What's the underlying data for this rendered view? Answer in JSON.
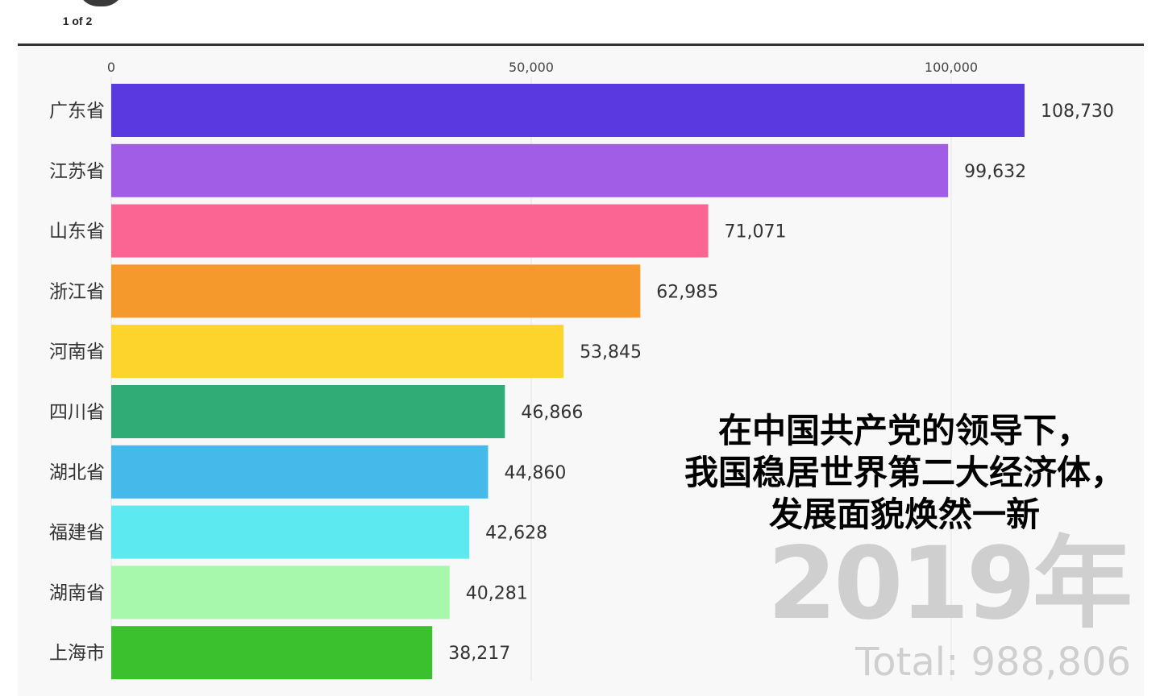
{
  "header": {
    "pager": "1 of 2"
  },
  "chart_data": {
    "type": "bar",
    "orientation": "horizontal",
    "categories": [
      "广东省",
      "江苏省",
      "山东省",
      "浙江省",
      "河南省",
      "四川省",
      "湖北省",
      "福建省",
      "湖南省",
      "上海市"
    ],
    "values": [
      108730,
      99632,
      71071,
      62985,
      53845,
      46866,
      44860,
      42628,
      40281,
      38217
    ],
    "value_labels": [
      "108,730",
      "99,632",
      "71,071",
      "62,985",
      "53,845",
      "46,866",
      "44,860",
      "42,628",
      "40,281",
      "38,217"
    ],
    "colors": [
      "#5a3ae0",
      "#a25de6",
      "#fb6593",
      "#f6992d",
      "#fdd42b",
      "#30ac77",
      "#45b9ea",
      "#5ce9ef",
      "#a7f7ac",
      "#3ac12d"
    ],
    "x_ticks": [
      0,
      50000,
      100000
    ],
    "x_tick_labels": [
      "0",
      "50,000",
      "100,000"
    ],
    "xlim": [
      0,
      125000
    ],
    "grid": true,
    "axis_position": "top"
  },
  "overlay": {
    "caption_lines": [
      "在中国共产党的领导下，",
      "我国稳居世界第二大经济体，",
      "发展面貌焕然一新"
    ],
    "year": "2019年",
    "total": "Total: 988,806"
  }
}
